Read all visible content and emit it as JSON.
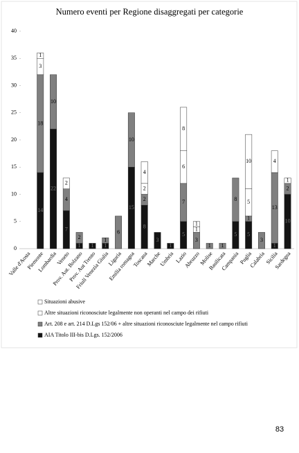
{
  "chart_data": {
    "type": "stacked_bar",
    "title": "Numero eventi per Regione disaggregati per categorie",
    "categories": [
      "Valle d'Aosta",
      "Piemonte",
      "Lombardia",
      "Veneto",
      "Prov. Aut. Bolzano",
      "Prov. Aut Trento",
      "Friuli Venezia Giulia",
      "Liguria",
      "Emilia romagna",
      "Toscana",
      "Marche",
      "Umbria",
      "Lazio",
      "Abruzzo",
      "Molise",
      "Basilicata",
      "Campania",
      "Puglia",
      "Calabria",
      "Sicilia",
      "Sardegna"
    ],
    "series": [
      {
        "name": "AIA Titolo III-bis D.Lgs. 152/2006",
        "color": "#141414",
        "values": [
          0,
          14,
          22,
          7,
          1,
          1,
          1,
          0,
          15,
          8,
          3,
          1,
          5,
          0,
          0,
          0,
          5,
          5,
          0,
          1,
          10
        ]
      },
      {
        "name": "Art. 208 e  art. 214 D.Lgs 152/06 + altre situazioni riconosciute legalmente nel campo rifiuti",
        "color": "#808080",
        "values": [
          0,
          18,
          10,
          4,
          2,
          0,
          1,
          6,
          10,
          2,
          0,
          0,
          7,
          3,
          1,
          1,
          8,
          1,
          3,
          13,
          2
        ]
      },
      {
        "name": "Altre situazioni riconosciute legalmente non operanti nel campo dei rifiuti",
        "color": "#ffffff",
        "values": [
          0,
          3,
          0,
          2,
          0,
          0,
          0,
          0,
          0,
          2,
          0,
          0,
          6,
          1,
          0,
          0,
          0,
          5,
          0,
          0,
          1
        ]
      },
      {
        "name": "Situazioni abusive",
        "color": "#ffffff",
        "values": [
          0,
          1,
          0,
          0,
          0,
          0,
          0,
          0,
          0,
          4,
          0,
          0,
          8,
          1,
          0,
          0,
          0,
          10,
          0,
          4,
          0
        ]
      }
    ],
    "ylim": [
      0,
      40
    ],
    "yticks": [
      0,
      5,
      10,
      15,
      20,
      25,
      30,
      35,
      40
    ],
    "grid": false
  },
  "page_number": "83"
}
